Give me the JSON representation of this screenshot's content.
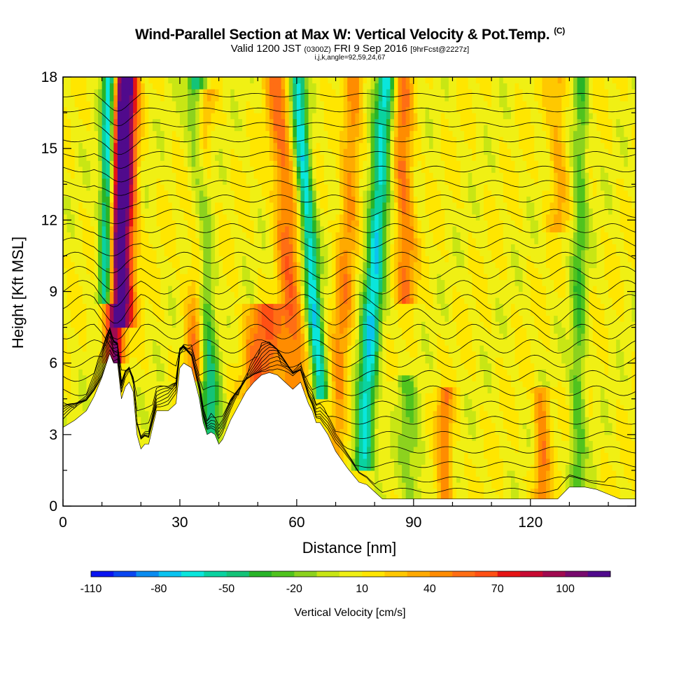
{
  "title": {
    "main": "Wind-Parallel Section at Max W: Vertical Velocity & Pot.Temp.",
    "mark": "(C)",
    "valid_prefix": "Valid 1200 JST",
    "valid_utc": "(0300Z)",
    "valid_date": "FRI 9 Sep 2016",
    "forecast": "[9hrFcst@2227z]",
    "indices": "i,j,k,angle=92,59,24,67"
  },
  "chart_data": {
    "type": "heatmap",
    "xlabel": "Distance [nm]",
    "ylabel": "Height [Kft MSL]",
    "xlim": [
      0,
      147
    ],
    "ylim": [
      0,
      18
    ],
    "x_ticks": [
      0,
      30,
      60,
      90,
      120
    ],
    "y_ticks": [
      0,
      3,
      6,
      9,
      12,
      15,
      18
    ],
    "colorbar": {
      "label": "Vertical Velocity [cm/s]",
      "tick_labels": [
        "-110",
        "-80",
        "-50",
        "-20",
        "10",
        "40",
        "70",
        "100"
      ],
      "tick_values": [
        -110,
        -80,
        -50,
        -20,
        10,
        40,
        70,
        100
      ],
      "levels": [
        -110,
        -100,
        -90,
        -80,
        -70,
        -60,
        -50,
        -40,
        -30,
        -20,
        -10,
        0,
        10,
        20,
        30,
        40,
        50,
        60,
        70,
        80,
        90,
        100,
        110
      ],
      "colors": [
        "#0a14f0",
        "#0a46f0",
        "#0a8cf0",
        "#0ac3f0",
        "#0ae6dc",
        "#0ad2a0",
        "#14c378",
        "#28b428",
        "#50c31e",
        "#8cd21e",
        "#c8e614",
        "#f0f014",
        "#ffe600",
        "#ffc800",
        "#ffaa00",
        "#ff8c00",
        "#ff6e14",
        "#ff5014",
        "#e61414",
        "#c80a32",
        "#a00a50",
        "#780a6e",
        "#500a8c"
      ]
    },
    "terrain_profile_kft": {
      "x": [
        0,
        3,
        6,
        8,
        10,
        12,
        13,
        14,
        15,
        16,
        17,
        18,
        19,
        20,
        21,
        22,
        24,
        27,
        29,
        30,
        31,
        33,
        35,
        36,
        37,
        38,
        39,
        40,
        41,
        42,
        43,
        45,
        47,
        49,
        51,
        53,
        55,
        57,
        59,
        61,
        63,
        64,
        65,
        66,
        68,
        70,
        73,
        76,
        78,
        80,
        82,
        85,
        88,
        90,
        95,
        100,
        105,
        110,
        115,
        120,
        125,
        127,
        130,
        134,
        137,
        140,
        143,
        147
      ],
      "y": [
        3.3,
        3.6,
        4.0,
        4.6,
        5.4,
        6.4,
        6.0,
        6.0,
        4.5,
        5.0,
        5.2,
        4.8,
        3.0,
        2.4,
        2.6,
        2.6,
        4.0,
        4.0,
        4.3,
        5.8,
        6.0,
        5.8,
        4.5,
        3.5,
        3.0,
        3.1,
        3.0,
        2.6,
        2.8,
        3.2,
        3.6,
        4.2,
        4.8,
        5.2,
        5.5,
        5.6,
        5.5,
        5.2,
        4.9,
        5.2,
        4.3,
        4.0,
        3.5,
        3.5,
        3.0,
        2.3,
        1.6,
        1.0,
        0.9,
        0.6,
        0.3,
        0.3,
        0.3,
        0.3,
        0.3,
        0.3,
        0.3,
        0.3,
        0.3,
        0.3,
        0.3,
        0.3,
        0.8,
        0.8,
        0.7,
        0.5,
        0.3,
        0.3
      ]
    },
    "updraft_bands": [
      {
        "x_bottom": 13,
        "x_top": 15,
        "z_bottom": 6.4,
        "z_top": 18,
        "width_nm": 2.5,
        "w": 90
      },
      {
        "x_bottom": 16,
        "x_top": 17,
        "z_bottom": 8,
        "z_top": 18,
        "width_nm": 2.5,
        "w": 70
      },
      {
        "x_bottom": 34,
        "x_top": 36,
        "z_bottom": 5.8,
        "z_top": 17,
        "width_nm": 2.5,
        "w": 45
      },
      {
        "x_bottom": 51,
        "x_top": 52,
        "z_bottom": 5.0,
        "z_top": 8.0,
        "width_nm": 5,
        "w": 50
      },
      {
        "x_bottom": 60,
        "x_top": 55,
        "z_bottom": 5.0,
        "z_top": 18,
        "width_nm": 3,
        "w": 45
      },
      {
        "x_bottom": 70,
        "x_top": 75,
        "z_bottom": 2,
        "z_top": 18,
        "width_nm": 2.5,
        "w": 35
      },
      {
        "x_bottom": 88,
        "x_top": 87,
        "z_bottom": 9,
        "z_top": 18,
        "width_nm": 2.5,
        "w": 45
      },
      {
        "x_bottom": 98,
        "x_top": 98,
        "z_bottom": 0.3,
        "z_top": 4.5,
        "width_nm": 2,
        "w": 40
      },
      {
        "x_bottom": 123,
        "x_top": 123,
        "z_bottom": 0.3,
        "z_top": 4.5,
        "width_nm": 2,
        "w": 40
      },
      {
        "x_bottom": 127,
        "x_top": 127,
        "z_bottom": 12,
        "z_top": 18,
        "width_nm": 2.5,
        "w": 25
      }
    ],
    "downdraft_bands": [
      {
        "x_bottom": 11,
        "x_top": 12,
        "z_bottom": 9,
        "z_top": 18,
        "width_nm": 1.8,
        "w": -90
      },
      {
        "x_bottom": 38,
        "x_top": 34,
        "z_bottom": 3,
        "z_top": 18,
        "width_nm": 2.5,
        "w": -55
      },
      {
        "x_bottom": 66,
        "x_top": 60,
        "z_bottom": 5,
        "z_top": 18,
        "width_nm": 2,
        "w": -75
      },
      {
        "x_bottom": 77,
        "x_top": 83,
        "z_bottom": 2,
        "z_top": 18,
        "width_nm": 2.5,
        "w": -75
      },
      {
        "x_bottom": 90,
        "x_top": 88,
        "z_bottom": 0.5,
        "z_top": 5,
        "width_nm": 3,
        "w": -25
      },
      {
        "x_bottom": 132,
        "x_top": 133,
        "z_bottom": 0.5,
        "z_top": 18,
        "width_nm": 2,
        "w": -35
      }
    ],
    "isentropes": {
      "field": "potential temperature",
      "interval": "every 0.6 kft over flat terrain",
      "count": 28
    },
    "grid": false,
    "legend": "colorbar bottom"
  }
}
